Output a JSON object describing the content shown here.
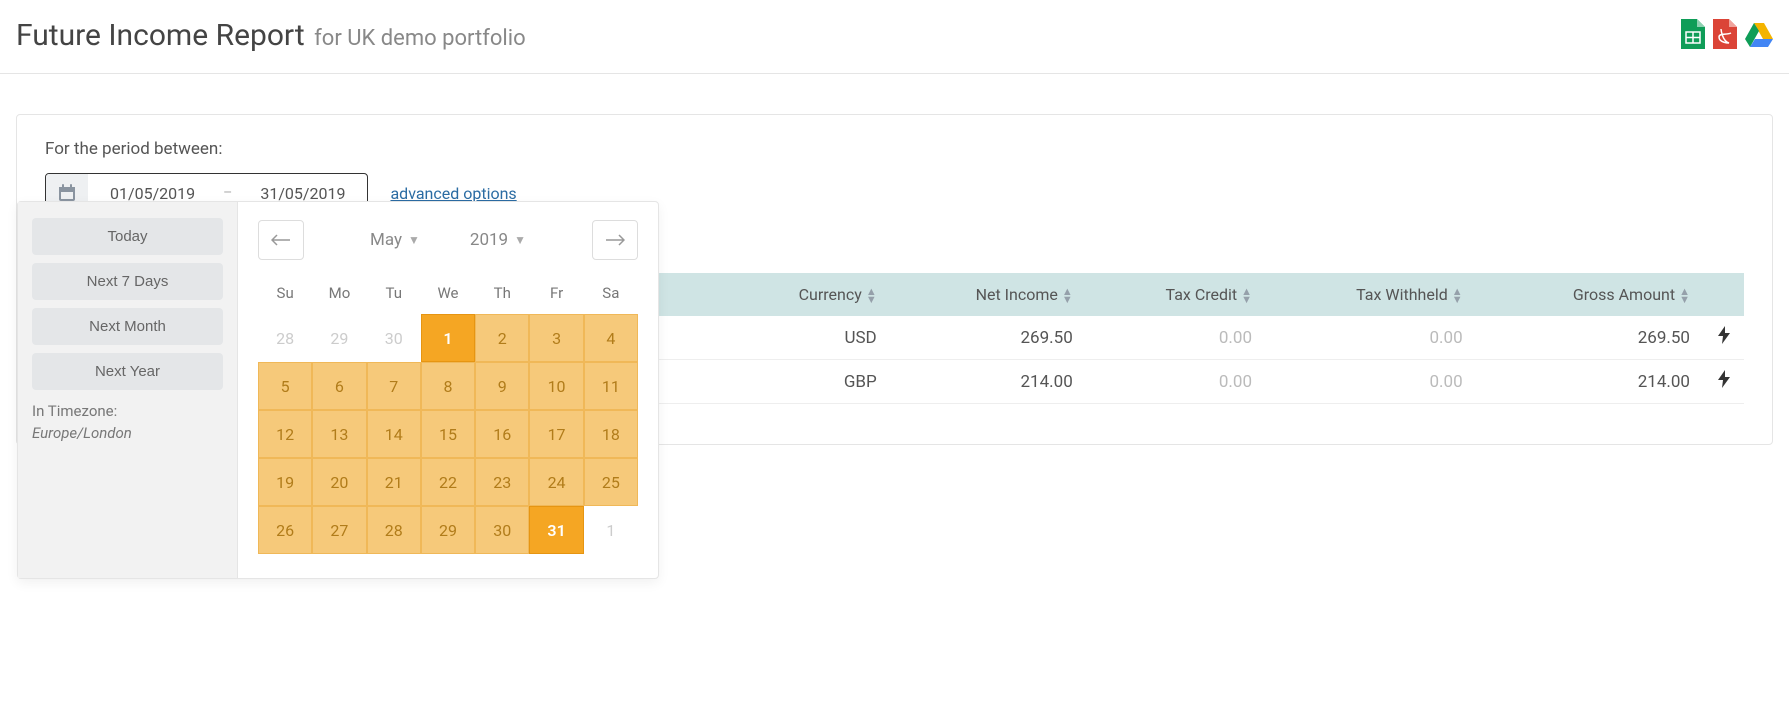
{
  "header": {
    "title": "Future Income Report",
    "subtitle": "for UK demo portfolio"
  },
  "exportIcons": {
    "sheets": {
      "color": "#0f9d58"
    },
    "pdf": {
      "color": "#db4437"
    },
    "drive": {
      "colors": [
        "#0f9d58",
        "#f4b400",
        "#4285f4"
      ]
    }
  },
  "period": {
    "label": "For the period between:",
    "from": "01/05/2019",
    "to": "31/05/2019",
    "advanced": "advanced options"
  },
  "table": {
    "columns": [
      "Currency",
      "Net Income",
      "Tax Credit",
      "Tax Withheld",
      "Gross Amount"
    ],
    "rows": [
      {
        "currency": "USD",
        "net": "269.50",
        "credit": "0.00",
        "withheld": "0.00",
        "gross": "269.50"
      },
      {
        "currency": "GBP",
        "net": "214.00",
        "credit": "0.00",
        "withheld": "0.00",
        "gross": "214.00"
      }
    ],
    "headerBg": "#cfe4e4"
  },
  "datepicker": {
    "presets": [
      "Today",
      "Next 7 Days",
      "Next Month",
      "Next Year"
    ],
    "timezoneLabel": "In Timezone:",
    "timezone": "Europe/London",
    "month": "May",
    "year": "2019",
    "weekdays": [
      "Su",
      "Mo",
      "Tu",
      "We",
      "Th",
      "Fr",
      "Sa"
    ],
    "days": [
      {
        "n": "28",
        "state": "other"
      },
      {
        "n": "29",
        "state": "other"
      },
      {
        "n": "30",
        "state": "other"
      },
      {
        "n": "1",
        "state": "endpoint"
      },
      {
        "n": "2",
        "state": "range"
      },
      {
        "n": "3",
        "state": "range"
      },
      {
        "n": "4",
        "state": "range"
      },
      {
        "n": "5",
        "state": "range"
      },
      {
        "n": "6",
        "state": "range"
      },
      {
        "n": "7",
        "state": "range"
      },
      {
        "n": "8",
        "state": "range"
      },
      {
        "n": "9",
        "state": "range"
      },
      {
        "n": "10",
        "state": "range"
      },
      {
        "n": "11",
        "state": "range"
      },
      {
        "n": "12",
        "state": "range"
      },
      {
        "n": "13",
        "state": "range"
      },
      {
        "n": "14",
        "state": "range"
      },
      {
        "n": "15",
        "state": "range"
      },
      {
        "n": "16",
        "state": "range"
      },
      {
        "n": "17",
        "state": "range"
      },
      {
        "n": "18",
        "state": "range"
      },
      {
        "n": "19",
        "state": "range"
      },
      {
        "n": "20",
        "state": "range"
      },
      {
        "n": "21",
        "state": "range"
      },
      {
        "n": "22",
        "state": "range"
      },
      {
        "n": "23",
        "state": "range"
      },
      {
        "n": "24",
        "state": "range"
      },
      {
        "n": "25",
        "state": "range"
      },
      {
        "n": "26",
        "state": "range"
      },
      {
        "n": "27",
        "state": "range"
      },
      {
        "n": "28",
        "state": "range"
      },
      {
        "n": "29",
        "state": "range"
      },
      {
        "n": "30",
        "state": "range"
      },
      {
        "n": "31",
        "state": "endpoint"
      },
      {
        "n": "1",
        "state": "other"
      }
    ],
    "colors": {
      "range": "#f6c97a",
      "endpoint": "#f5a623",
      "rangeText": "#b17c1a"
    }
  }
}
